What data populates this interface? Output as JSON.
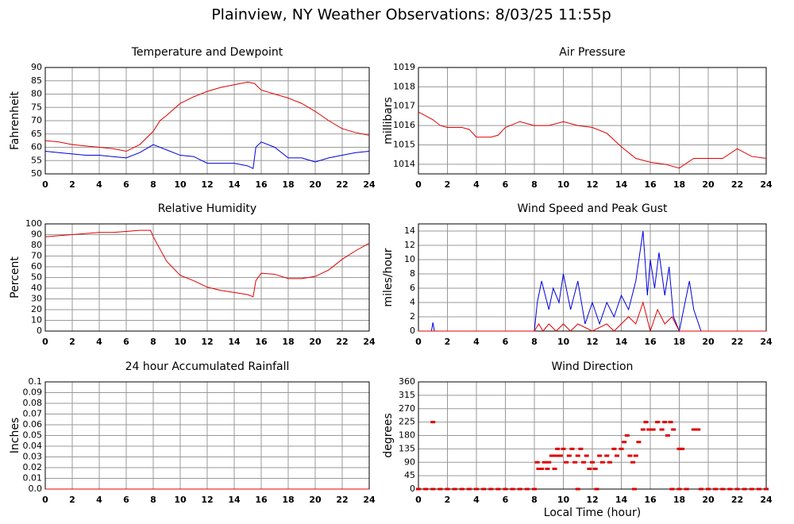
{
  "title": "Plainview, NY Weather Observations: 8/03/25 11:55p",
  "chart_data": [
    {
      "type": "line",
      "title": "Temperature and Dewpoint",
      "ylabel": "Fahrenheit",
      "xlim": [
        0,
        24
      ],
      "xticks": [
        0,
        2,
        4,
        6,
        8,
        10,
        12,
        14,
        16,
        18,
        20,
        22,
        24
      ],
      "ylim": [
        50,
        90
      ],
      "yticks": [
        50,
        55,
        60,
        65,
        70,
        75,
        80,
        85,
        90
      ],
      "grid": true,
      "series": [
        {
          "color": "#e00000",
          "x": [
            0,
            1,
            2,
            3,
            4,
            5,
            6,
            7,
            8,
            8.5,
            9,
            10,
            11,
            12,
            13,
            14,
            15,
            15.5,
            16,
            17,
            18,
            19,
            20,
            21,
            22,
            23,
            24
          ],
          "values": [
            62.5,
            62,
            61,
            60.5,
            60,
            59.5,
            58.5,
            61,
            66,
            70,
            72,
            76.5,
            79,
            81,
            82.5,
            83.5,
            84.5,
            84,
            81.5,
            80,
            78.5,
            76.5,
            73.5,
            70,
            67,
            65.5,
            64.5
          ]
        },
        {
          "color": "#0000e0",
          "x": [
            0,
            1,
            2,
            3,
            4,
            5,
            6,
            7,
            8,
            9,
            10,
            11,
            12,
            13,
            14,
            15,
            15.4,
            15.6,
            16,
            17,
            18,
            19,
            20,
            21,
            22,
            23,
            24
          ],
          "values": [
            58.5,
            58,
            57.5,
            57,
            57,
            56.5,
            56,
            58,
            61,
            59,
            57,
            56.5,
            54,
            54,
            54,
            53,
            52,
            60,
            62,
            60,
            56,
            56,
            54.5,
            56,
            57,
            58,
            58.5
          ]
        }
      ]
    },
    {
      "type": "line",
      "title": "Air Pressure",
      "ylabel": "millibars",
      "xlim": [
        0,
        24
      ],
      "xticks": [
        0,
        2,
        4,
        6,
        8,
        10,
        12,
        14,
        16,
        18,
        20,
        22,
        24
      ],
      "ylim": [
        1013.5,
        1019
      ],
      "yticks": [
        1014,
        1015,
        1016,
        1017,
        1018,
        1019
      ],
      "grid": true,
      "series": [
        {
          "color": "#e00000",
          "x": [
            0,
            0.5,
            1,
            1.5,
            2,
            3,
            3.5,
            4,
            5,
            5.5,
            6,
            7,
            8,
            9,
            10,
            11,
            12,
            13,
            14,
            15,
            16,
            17,
            18,
            19,
            20,
            21,
            22,
            23,
            24
          ],
          "values": [
            1016.7,
            1016.5,
            1016.3,
            1016,
            1015.9,
            1015.9,
            1015.8,
            1015.4,
            1015.4,
            1015.5,
            1015.9,
            1016.2,
            1016,
            1016,
            1016.2,
            1016,
            1015.9,
            1015.6,
            1014.9,
            1014.3,
            1014.1,
            1014,
            1013.8,
            1014.3,
            1014.3,
            1014.3,
            1014.8,
            1014.4,
            1014.3
          ]
        }
      ]
    },
    {
      "type": "line",
      "title": "Relative Humidity",
      "ylabel": "Percent",
      "xlim": [
        0,
        24
      ],
      "xticks": [
        0,
        2,
        4,
        6,
        8,
        10,
        12,
        14,
        16,
        18,
        20,
        22,
        24
      ],
      "ylim": [
        0,
        100
      ],
      "yticks": [
        0,
        10,
        20,
        30,
        40,
        50,
        60,
        70,
        80,
        90,
        100
      ],
      "grid": true,
      "series": [
        {
          "color": "#e00000",
          "x": [
            0,
            1,
            2,
            3,
            4,
            5,
            6,
            7,
            7.8,
            8,
            9,
            10,
            11,
            12,
            13,
            14,
            15,
            15.4,
            15.6,
            16,
            17,
            18,
            19,
            20,
            21,
            22,
            23,
            24
          ],
          "values": [
            88,
            89,
            90,
            91,
            92,
            92,
            93,
            94,
            94,
            88,
            65,
            52,
            47,
            41,
            38,
            36,
            34,
            32,
            47,
            54,
            53,
            49,
            49,
            51,
            57,
            67,
            75,
            82
          ]
        }
      ]
    },
    {
      "type": "line",
      "title": "Wind Speed and Peak Gust",
      "ylabel": "miles/hour",
      "xlim": [
        0,
        24
      ],
      "xticks": [
        0,
        2,
        4,
        6,
        8,
        10,
        12,
        14,
        16,
        18,
        20,
        22,
        24
      ],
      "ylim": [
        0,
        15
      ],
      "yticks": [
        0,
        2,
        4,
        6,
        8,
        10,
        12,
        14
      ],
      "grid": true,
      "series": [
        {
          "color": "#0000e0",
          "x": [
            0,
            0.9,
            1,
            1.1,
            8,
            8.2,
            8.5,
            9,
            9.3,
            9.7,
            10,
            10.5,
            11,
            11.5,
            12,
            12.5,
            13,
            13.5,
            14,
            14.5,
            15,
            15.5,
            15.8,
            16,
            16.3,
            16.6,
            17,
            17.3,
            17.6,
            18,
            18.7,
            19,
            19.5,
            24
          ],
          "values": [
            0,
            0,
            1.2,
            0,
            0,
            4,
            7,
            3,
            6,
            4,
            8,
            3,
            7,
            1,
            4,
            1,
            4,
            2,
            5,
            3,
            7,
            14,
            5,
            10,
            6,
            11,
            5,
            9,
            2,
            0,
            7,
            3,
            0,
            0
          ]
        },
        {
          "color": "#e00000",
          "x": [
            0,
            8,
            8.3,
            8.6,
            9,
            9.5,
            10,
            10.5,
            11,
            12,
            13,
            13.5,
            14,
            14.5,
            15,
            15.5,
            16,
            16.5,
            17,
            17.5,
            18,
            24
          ],
          "values": [
            0,
            0,
            1,
            0,
            1,
            0,
            1,
            0,
            1,
            0,
            1,
            0,
            1,
            2,
            1,
            4,
            0,
            3,
            1,
            2,
            0,
            0
          ]
        }
      ]
    },
    {
      "type": "line",
      "title": "24 hour Accumulated Rainfall",
      "ylabel": "Inches",
      "xlim": [
        0,
        24
      ],
      "xticks": [
        0,
        2,
        4,
        6,
        8,
        10,
        12,
        14,
        16,
        18,
        20,
        22,
        24
      ],
      "ylim": [
        0,
        0.1
      ],
      "yticks": [
        {
          "value": 0,
          "label": "0.0"
        },
        0.01,
        0.02,
        0.03,
        0.04,
        0.05,
        0.06,
        0.07,
        0.08,
        0.09,
        0.1
      ],
      "grid": true,
      "series": [
        {
          "color": "#e00000",
          "x": [
            0,
            24
          ],
          "values": [
            0,
            0
          ]
        }
      ]
    },
    {
      "type": "scatter",
      "title": "Wind Direction",
      "ylabel": "degrees",
      "xlabel": "Local Time (hour)",
      "xlim": [
        0,
        24
      ],
      "xticks": [
        0,
        2,
        4,
        6,
        8,
        10,
        12,
        14,
        16,
        18,
        20,
        22,
        24
      ],
      "ylim": [
        0,
        360
      ],
      "yticks": [
        0,
        45,
        90,
        135,
        180,
        225,
        270,
        315,
        360
      ],
      "grid": true,
      "series": [
        {
          "color": "#e00000",
          "x": [
            0,
            0.5,
            1,
            1.5,
            2,
            2.5,
            3,
            3.5,
            4,
            4.5,
            5,
            5.5,
            6,
            6.5,
            7,
            7.5,
            8,
            1,
            8.2,
            8.3,
            8.5,
            8.7,
            8.9,
            9,
            9.2,
            9.4,
            9.5,
            9.6,
            9.8,
            10,
            10.2,
            10.4,
            10.6,
            10.8,
            11,
            11.2,
            11.4,
            11.6,
            11.8,
            12,
            12.2,
            12.5,
            12.7,
            13,
            13.2,
            13.5,
            13.7,
            14,
            14.2,
            14.4,
            14.6,
            14.8,
            15,
            15.2,
            15.5,
            15.7,
            15.9,
            16.2,
            16.5,
            16.8,
            17,
            17.2,
            17.4,
            17.6,
            18,
            18.2,
            19,
            19.3,
            11,
            12.3,
            14.9,
            17.5,
            18,
            18.5,
            19.5,
            20,
            20.5,
            21,
            21.5,
            22,
            22.5,
            23,
            23.5,
            24
          ],
          "values": [
            0,
            0,
            0,
            0,
            0,
            0,
            0,
            0,
            0,
            0,
            0,
            0,
            0,
            0,
            0,
            0,
            0,
            225,
            90,
            68,
            68,
            90,
            68,
            90,
            112,
            68,
            112,
            135,
            112,
            135,
            90,
            112,
            135,
            90,
            112,
            135,
            90,
            112,
            68,
            90,
            68,
            112,
            90,
            112,
            90,
            135,
            112,
            135,
            158,
            180,
            112,
            90,
            112,
            158,
            200,
            225,
            200,
            200,
            225,
            200,
            225,
            180,
            225,
            200,
            135,
            135,
            200,
            200,
            0,
            0,
            0,
            0,
            0,
            0,
            0,
            0,
            0,
            0,
            0,
            0,
            0,
            0,
            0,
            0
          ]
        }
      ]
    }
  ]
}
